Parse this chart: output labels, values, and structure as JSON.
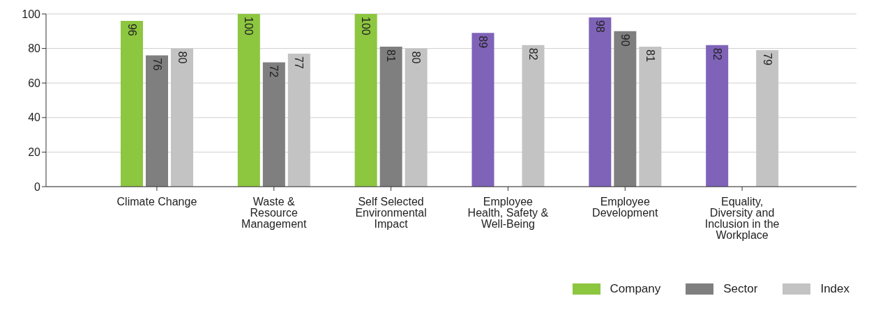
{
  "chart_data": {
    "type": "bar",
    "categories": [
      "Climate Change",
      "Waste & Resource Management",
      "Self Selected Environmental Impact",
      "Employee Health, Safety & Well-Being",
      "Employee Development",
      "Equality, Diversity and Inclusion in the Workplace"
    ],
    "series": [
      {
        "name": "Company",
        "color": "#8dc63f",
        "colors": [
          "#8dc63f",
          "#8dc63f",
          "#8dc63f",
          "#7f63b8",
          "#7f63b8",
          "#7f63b8"
        ],
        "values": [
          96,
          100,
          100,
          89,
          98,
          82
        ]
      },
      {
        "name": "Sector",
        "color": "#7f7f7f",
        "values": [
          76,
          72,
          81,
          null,
          90,
          null
        ]
      },
      {
        "name": "Index",
        "color": "#c3c3c3",
        "values": [
          80,
          77,
          80,
          82,
          81,
          79
        ]
      }
    ],
    "ylim": [
      0,
      100
    ],
    "yticks": [
      0,
      20,
      40,
      60,
      80,
      100
    ],
    "grid": "y",
    "data_labels": true,
    "legend": "bottom right"
  }
}
